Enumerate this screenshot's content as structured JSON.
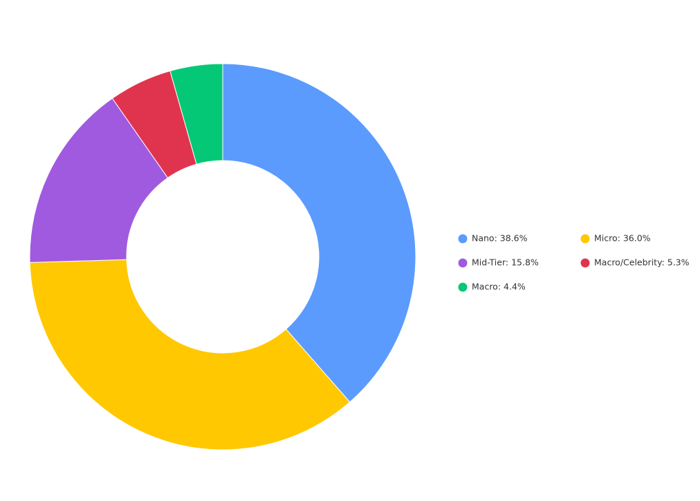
{
  "chart_data": {
    "type": "donut",
    "categories": [
      "Nano: 38.6%",
      "Micro: 36.0%",
      "Mid-Tier: 15.8%",
      "Macro/Celebrity: 5.3%",
      "Macro: 4.4%"
    ],
    "values": [
      38.6,
      36.0,
      15.8,
      5.3,
      4.4
    ],
    "colors": [
      "#5b9bfd",
      "#ffc800",
      "#a05ae0",
      "#e0344e",
      "#05c877"
    ],
    "legend": "right"
  }
}
